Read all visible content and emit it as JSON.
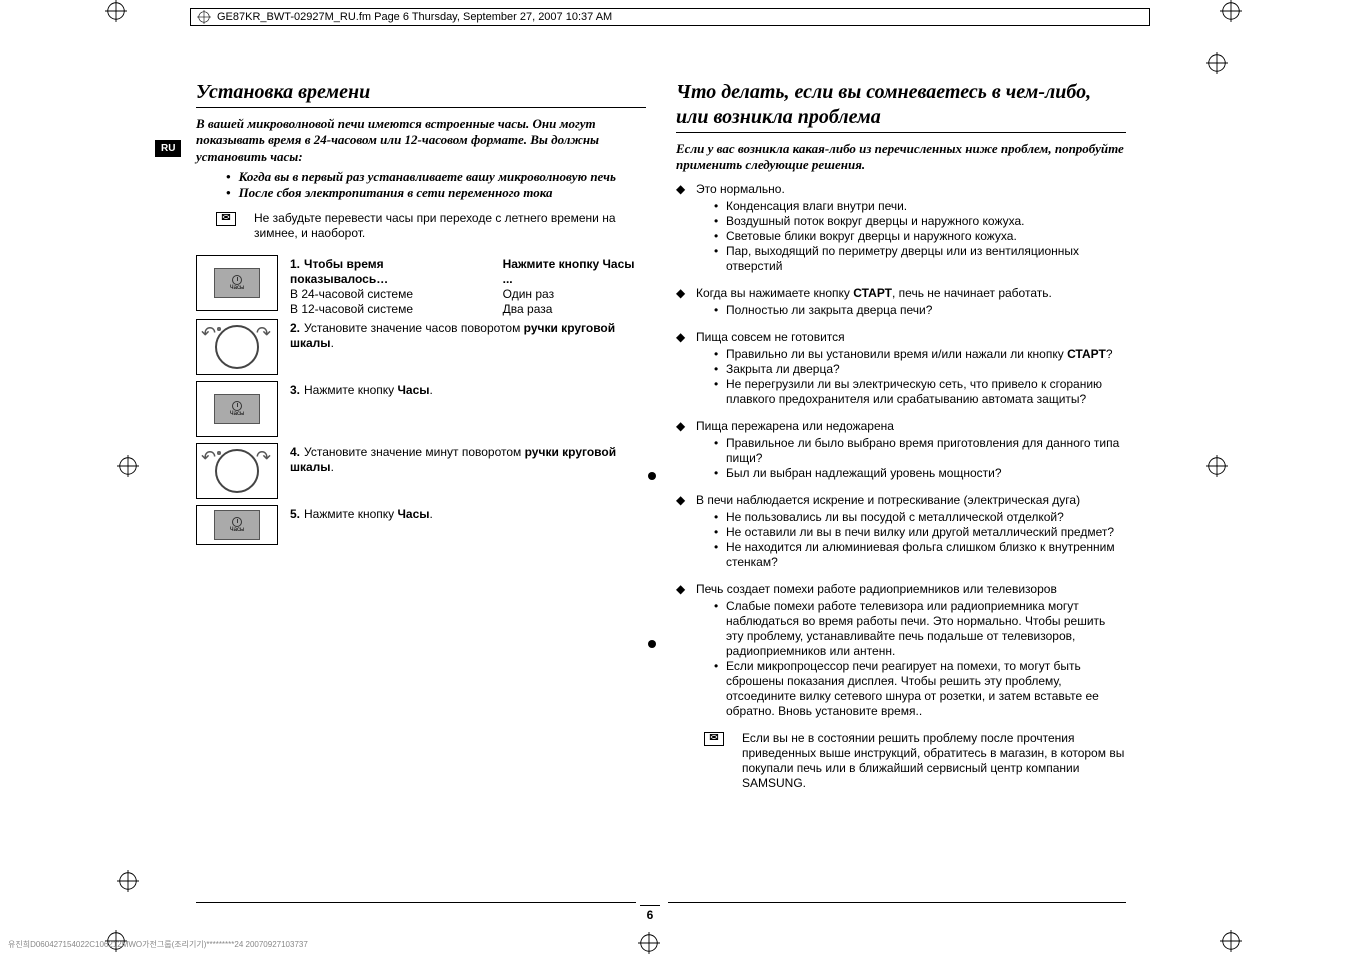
{
  "header": "GE87KR_BWT-02927M_RU.fm  Page 6  Thursday, September 27, 2007  10:37 AM",
  "lang_tab": "RU",
  "page_number": "6",
  "footer_meta": "유진희D060427154022C106212MWO가전그룹(조리기기)*********24 20070927103737",
  "left": {
    "title": "Установка времени",
    "intro": "В вашей микроволновой печи имеются встроенные часы. Они могут показывать время в 24-часовом или 12-часовом формате. Вы должны установить часы:",
    "intro_bullets": [
      "Когда вы в первый раз устанавливаете вашу микроволновую печь",
      "После сбоя электропитания в сети переменного тока"
    ],
    "note": "Не забудьте перевести часы при переходе с летнего времени на зимнее, и наоборот.",
    "steps": [
      {
        "num": "1.",
        "icon": "clock",
        "col1_head": "Чтобы время показывалось…",
        "col2_head": "Нажмите кнопку Часы ...",
        "row1_l": "В 24-часовой системе",
        "row1_r": "Один раз",
        "row2_l": "В 12-часовой системе",
        "row2_r": "Два раза"
      },
      {
        "num": "2.",
        "icon": "dial",
        "text_pre": "Установите значение часов поворотом ",
        "bold": "ручки круговой шкалы",
        "text_post": "."
      },
      {
        "num": "3.",
        "icon": "clock",
        "text_pre": "Нажмите кнопку ",
        "bold": "Часы",
        "text_post": "."
      },
      {
        "num": "4.",
        "icon": "dial",
        "text_pre": "Установите значение минут поворотом ",
        "bold": "ручки круговой шкалы",
        "text_post": "."
      },
      {
        "num": "5.",
        "icon": "clock",
        "text_pre": "Нажмите кнопку ",
        "bold": "Часы",
        "text_post": "."
      }
    ]
  },
  "right": {
    "title": "Что делать, если вы сомневаетесь в чем-либо, или возникла проблема",
    "intro": "Если у вас возникла какая-либо из перечисленных ниже проблем, попробуйте применить следующие решения.",
    "sections": [
      {
        "head": "Это нормально.",
        "items": [
          "Конденсация влаги внутри печи.",
          "Воздушный поток вокруг дверцы и наружного кожуха.",
          "Световые блики вокруг дверцы и наружного кожуха.",
          "Пар, выходящий по периметру дверцы или из вентиляционных отверстий"
        ]
      },
      {
        "head_pre": "Когда вы нажимаете кнопку ",
        "head_bold": "СТАРТ",
        "head_post": ", печь не начинает работать.",
        "items": [
          "Полностью ли закрыта дверца печи?"
        ]
      },
      {
        "head": "Пища совсем не готовится",
        "items_rich": [
          {
            "pre": "Правильно ли вы установили время и/или нажали ли кнопку ",
            "bold": "СТАРТ",
            "post": "?"
          },
          {
            "plain": "Закрыта ли дверца?"
          },
          {
            "plain": "Не перегрузили ли вы электрическую сеть, что привело к сгоранию плавкого предохранителя или срабатыванию автомата защиты?"
          }
        ]
      },
      {
        "head": "Пища пережарена или недожарена",
        "items": [
          "Правильное ли было выбрано время приготовления для данного типа пищи?",
          "Был ли выбран надлежащий уровень мощности?"
        ]
      },
      {
        "head": "В печи наблюдается искрение и потрескивание (электрическая дуга)",
        "items": [
          "Не пользовались ли вы посудой с металлической отделкой?",
          "Не оставили ли вы в печи вилку или другой металлический предмет?",
          "Не находится ли алюминиевая фольга слишком близко к внутренним стенкам?"
        ]
      },
      {
        "head": "Печь создает помехи работе радиоприемников или телевизоров",
        "items": [
          "Слабые помехи работе телевизора или радиоприемника могут наблюдаться во время работы печи. Это нормально. Чтобы решить эту проблему, устанавливайте печь подальше от телевизоров, радиоприемников или антенн.",
          "Если микропроцессор печи реагирует на помехи, то могут быть сброшены показания дисплея. Чтобы решить эту проблему, отсоедините вилку сетевого шнура от розетки, и затем вставьте ее обратно. Вновь установите время.."
        ]
      }
    ],
    "note": "Если вы не в состоянии решить проблему после прочтения приведенных выше инструкций, обратитесь в магазин, в котором вы покупали печь или в ближайший сервисный центр компании SAMSUNG."
  }
}
